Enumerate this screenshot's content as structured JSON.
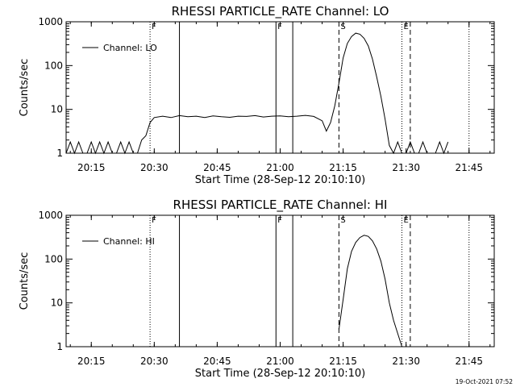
{
  "footer": {
    "timestamp": "19-Oct-2021 07:52"
  },
  "chart_data": [
    {
      "type": "line",
      "title": "RHESSI PARTICLE_RATE Channel: LO",
      "xlabel": "Start Time (28-Sep-12 20:10:10)",
      "ylabel": "Counts/sec",
      "y_scale": "log",
      "xlim": [
        "20:09",
        "21:51"
      ],
      "ylim": [
        1,
        1000
      ],
      "x_ticks": [
        "20:15",
        "20:30",
        "20:45",
        "21:00",
        "21:15",
        "21:30",
        "21:45"
      ],
      "y_ticks": [
        "1",
        "10",
        "100",
        "1000"
      ],
      "legend": {
        "placement": "top-left",
        "entries": [
          "Channel: LO"
        ]
      },
      "series": [
        {
          "name": "Channel: LO",
          "x": [
            "20:09",
            "20:10",
            "20:11",
            "20:12",
            "20:13",
            "20:14",
            "20:15",
            "20:16",
            "20:17",
            "20:18",
            "20:19",
            "20:20",
            "20:21",
            "20:22",
            "20:23",
            "20:24",
            "20:25",
            "20:26",
            "20:27",
            "20:28",
            "20:29",
            "20:30",
            "20:32",
            "20:34",
            "20:36",
            "20:38",
            "20:40",
            "20:42",
            "20:44",
            "20:46",
            "20:48",
            "20:50",
            "20:52",
            "20:54",
            "20:56",
            "20:58",
            "21:00",
            "21:02",
            "21:04",
            "21:06",
            "21:08",
            "21:10",
            "21:11",
            "21:12",
            "21:13",
            "21:14",
            "21:15",
            "21:16",
            "21:17",
            "21:18",
            "21:19",
            "21:20",
            "21:21",
            "21:22",
            "21:23",
            "21:24",
            "21:25",
            "21:26",
            "21:27",
            "21:28",
            "21:29",
            "21:30",
            "21:31",
            "21:32",
            "21:33",
            "21:34",
            "21:35",
            "21:36",
            "21:37",
            "21:38",
            "21:39",
            "21:40"
          ],
          "y": [
            1,
            1.8,
            1,
            1.8,
            1,
            1,
            1.8,
            1,
            1.8,
            1,
            1.8,
            1,
            1,
            1.8,
            1,
            1.8,
            1,
            1,
            2,
            2.5,
            5,
            6.5,
            7,
            6.5,
            7.2,
            6.8,
            7,
            6.5,
            7.1,
            6.8,
            6.6,
            7,
            6.9,
            7.2,
            6.7,
            7,
            7.1,
            6.8,
            7,
            7.3,
            6.9,
            5.5,
            3.2,
            5,
            12,
            40,
            150,
            320,
            460,
            550,
            520,
            420,
            280,
            140,
            55,
            20,
            6,
            1.5,
            1,
            1.8,
            1,
            1,
            1.8,
            1,
            1,
            1.8,
            1,
            1,
            1,
            1.8,
            1,
            1.8
          ]
        }
      ],
      "markers": [
        {
          "time": "20:29",
          "style": "dotted",
          "label": "F"
        },
        {
          "time": "20:36",
          "style": "solid",
          "label": ""
        },
        {
          "time": "20:59",
          "style": "solid",
          "label": "F"
        },
        {
          "time": "21:03",
          "style": "solid",
          "label": ""
        },
        {
          "time": "21:14",
          "style": "dashed",
          "label": "S"
        },
        {
          "time": "21:29",
          "style": "dotted",
          "label": "E"
        },
        {
          "time": "21:31",
          "style": "dashed",
          "label": ""
        },
        {
          "time": "21:45",
          "style": "dotted",
          "label": ""
        }
      ]
    },
    {
      "type": "line",
      "title": "RHESSI PARTICLE_RATE Channel: HI",
      "xlabel": "Start Time (28-Sep-12 20:10:10)",
      "ylabel": "Counts/sec",
      "y_scale": "log",
      "xlim": [
        "20:09",
        "21:51"
      ],
      "ylim": [
        1,
        1000
      ],
      "x_ticks": [
        "20:15",
        "20:30",
        "20:45",
        "21:00",
        "21:15",
        "21:30",
        "21:45"
      ],
      "y_ticks": [
        "1",
        "10",
        "100",
        "1000"
      ],
      "legend": {
        "placement": "top-left",
        "entries": [
          "Channel: HI"
        ]
      },
      "series": [
        {
          "name": "Channel: HI",
          "x": [
            "21:14",
            "21:15",
            "21:16",
            "21:17",
            "21:18",
            "21:19",
            "21:20",
            "21:21",
            "21:22",
            "21:23",
            "21:24",
            "21:25",
            "21:26",
            "21:27",
            "21:28",
            "21:29"
          ],
          "y": [
            2.5,
            12,
            60,
            150,
            240,
            310,
            350,
            330,
            260,
            170,
            90,
            35,
            10,
            4,
            2,
            1
          ]
        }
      ],
      "markers": [
        {
          "time": "20:29",
          "style": "dotted",
          "label": "F"
        },
        {
          "time": "20:36",
          "style": "solid",
          "label": ""
        },
        {
          "time": "20:59",
          "style": "solid",
          "label": "F"
        },
        {
          "time": "21:03",
          "style": "solid",
          "label": ""
        },
        {
          "time": "21:14",
          "style": "dashed",
          "label": "S"
        },
        {
          "time": "21:29",
          "style": "dotted",
          "label": "E"
        },
        {
          "time": "21:31",
          "style": "dashed",
          "label": ""
        },
        {
          "time": "21:45",
          "style": "dotted",
          "label": ""
        }
      ]
    }
  ]
}
